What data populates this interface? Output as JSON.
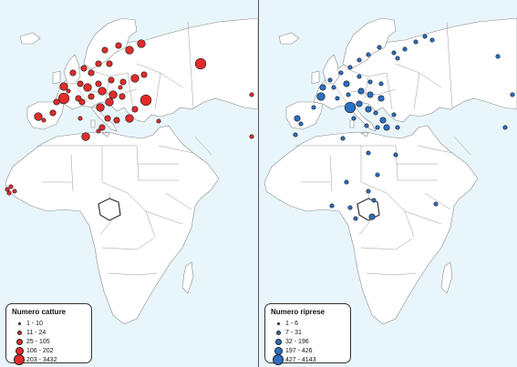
{
  "left_map": {
    "legend_title": "Numero catture",
    "color": "#e32b2b",
    "classes": [
      {
        "label": "1 - 10"
      },
      {
        "label": "11 - 24"
      },
      {
        "label": "25 - 105"
      },
      {
        "label": "106 - 202"
      },
      {
        "label": "203 - 3432"
      }
    ]
  },
  "right_map": {
    "legend_title": "Numero riprese",
    "color": "#2a6fc4",
    "classes": [
      {
        "label": "1 - 6"
      },
      {
        "label": "7 - 31"
      },
      {
        "label": "32 - 196"
      },
      {
        "label": "197 - 426"
      },
      {
        "label": "427 - 4143"
      }
    ]
  },
  "colors": {
    "sea": "#e8f5fb",
    "land": "#ffffff",
    "borders": "#8c8c8c"
  }
}
